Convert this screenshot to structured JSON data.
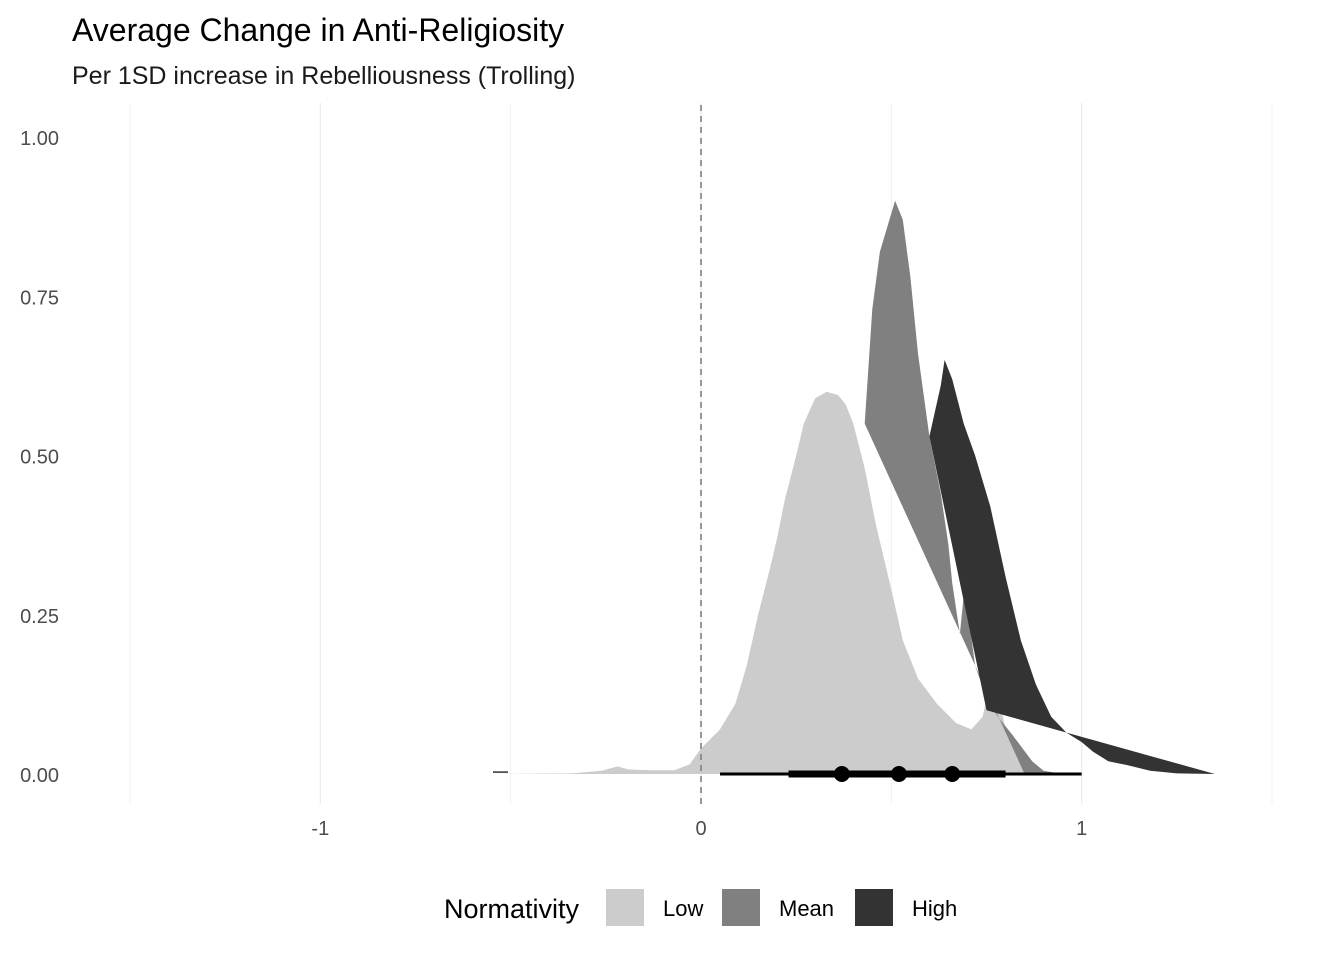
{
  "chart_data": {
    "type": "area",
    "title": "Average Change in Anti-Religiosity",
    "subtitle": "Per 1SD increase in Rebelliousness (Trolling)",
    "xlabel": "",
    "ylabel": "",
    "xlim": [
      -1.5,
      1.5
    ],
    "ylim": [
      0,
      1.0
    ],
    "x_ticks": [
      -1,
      0,
      1
    ],
    "y_ticks": [
      0.0,
      0.25,
      0.5,
      0.75,
      1.0
    ],
    "x_tick_labels": [
      "-1",
      "0",
      "1"
    ],
    "y_tick_labels": [
      "0.00",
      "0.25",
      "0.50",
      "0.75",
      "1.00"
    ],
    "grid": "vertical major and minor only",
    "reference_line": {
      "x": 0,
      "style": "dashed"
    },
    "legend": {
      "title": "Normativity",
      "position": "bottom"
    },
    "series": [
      {
        "name": "Low",
        "color": "#cccccc",
        "density": [
          [
            -0.55,
            0.0
          ],
          [
            -0.34,
            0.001
          ],
          [
            -0.26,
            0.005
          ],
          [
            -0.22,
            0.012
          ],
          [
            -0.19,
            0.007
          ],
          [
            -0.13,
            0.006
          ],
          [
            -0.07,
            0.006
          ],
          [
            -0.03,
            0.015
          ],
          [
            0.0,
            0.04
          ],
          [
            0.05,
            0.07
          ],
          [
            0.09,
            0.11
          ],
          [
            0.12,
            0.17
          ],
          [
            0.15,
            0.25
          ],
          [
            0.18,
            0.32
          ],
          [
            0.2,
            0.37
          ],
          [
            0.22,
            0.43
          ],
          [
            0.25,
            0.5
          ],
          [
            0.27,
            0.55
          ],
          [
            0.3,
            0.59
          ],
          [
            0.33,
            0.6
          ],
          [
            0.36,
            0.595
          ],
          [
            0.38,
            0.58
          ],
          [
            0.4,
            0.55
          ],
          [
            0.43,
            0.48
          ],
          [
            0.46,
            0.39
          ],
          [
            0.5,
            0.29
          ],
          [
            0.53,
            0.21
          ],
          [
            0.57,
            0.15
          ],
          [
            0.62,
            0.11
          ],
          [
            0.67,
            0.08
          ],
          [
            0.71,
            0.07
          ],
          [
            0.74,
            0.09
          ],
          [
            0.76,
            0.15
          ],
          [
            0.78,
            0.13
          ],
          [
            0.8,
            0.07
          ],
          [
            0.84,
            0.02
          ],
          [
            0.9,
            0.003
          ],
          [
            1.0,
            0.0
          ]
        ]
      },
      {
        "name": "Mean",
        "color": "#808080",
        "density": [
          [
            0.85,
            0.0
          ],
          [
            0.43,
            0.55
          ],
          [
            0.45,
            0.73
          ],
          [
            0.47,
            0.82
          ],
          [
            0.49,
            0.86
          ],
          [
            0.51,
            0.9
          ],
          [
            0.53,
            0.87
          ],
          [
            0.55,
            0.78
          ],
          [
            0.57,
            0.66
          ],
          [
            0.6,
            0.53
          ],
          [
            0.63,
            0.44
          ],
          [
            0.65,
            0.36
          ],
          [
            0.66,
            0.3
          ],
          [
            0.68,
            0.22
          ],
          [
            0.69,
            0.28
          ],
          [
            0.7,
            0.26
          ],
          [
            0.72,
            0.17
          ],
          [
            0.75,
            0.12
          ],
          [
            0.78,
            0.09
          ],
          [
            0.82,
            0.06
          ],
          [
            0.87,
            0.02
          ],
          [
            0.9,
            0.005
          ],
          [
            0.95,
            0.0
          ]
        ]
      },
      {
        "name": "High",
        "color": "#333333",
        "density": [
          [
            0.75,
            0.1
          ],
          [
            0.6,
            0.53
          ],
          [
            0.63,
            0.61
          ],
          [
            0.64,
            0.65
          ],
          [
            0.66,
            0.62
          ],
          [
            0.69,
            0.55
          ],
          [
            0.72,
            0.5
          ],
          [
            0.76,
            0.42
          ],
          [
            0.8,
            0.31
          ],
          [
            0.84,
            0.21
          ],
          [
            0.88,
            0.14
          ],
          [
            0.92,
            0.09
          ],
          [
            0.96,
            0.065
          ],
          [
            1.0,
            0.05
          ],
          [
            1.03,
            0.035
          ],
          [
            1.07,
            0.02
          ],
          [
            1.12,
            0.014
          ],
          [
            1.18,
            0.005
          ],
          [
            1.25,
            0.001
          ],
          [
            1.35,
            0.0
          ]
        ]
      }
    ],
    "intervals": [
      {
        "series": "Low",
        "point": 0.37,
        "inner": [
          0.23,
          0.55
        ],
        "outer": [
          0.05,
          0.7
        ]
      },
      {
        "series": "Mean",
        "point": 0.52,
        "inner": [
          0.4,
          0.65
        ],
        "outer": [
          0.28,
          0.82
        ]
      },
      {
        "series": "High",
        "point": 0.66,
        "inner": [
          0.5,
          0.8
        ],
        "outer": [
          0.35,
          1.0
        ]
      }
    ]
  }
}
